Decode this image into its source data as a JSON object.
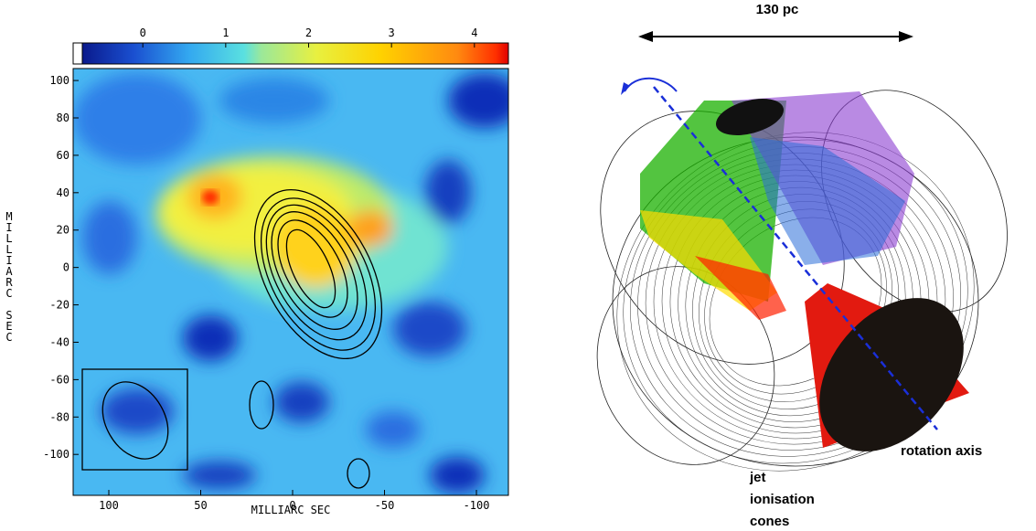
{
  "left_panel": {
    "colorbar_ticks": [
      0,
      1,
      2,
      3,
      4
    ],
    "colorbar_lim": [
      -0.73,
      4.41
    ],
    "xticks": [
      100,
      50,
      0,
      -50,
      -100
    ],
    "xlim": [
      119.4,
      -117.4
    ],
    "yticks": [
      100,
      80,
      60,
      40,
      20,
      0,
      -20,
      -40,
      -60,
      -80,
      -100
    ],
    "ylim": [
      -121.9,
      106.4
    ],
    "xlabel": "MILLIARC SEC",
    "ylabel": "MILLIARC SEC"
  },
  "right_panel": {
    "scale_label": "130 pc",
    "axis_label": "rotation axis",
    "cone_label_lines": [
      "jet",
      "ionisation",
      "cones"
    ]
  }
}
